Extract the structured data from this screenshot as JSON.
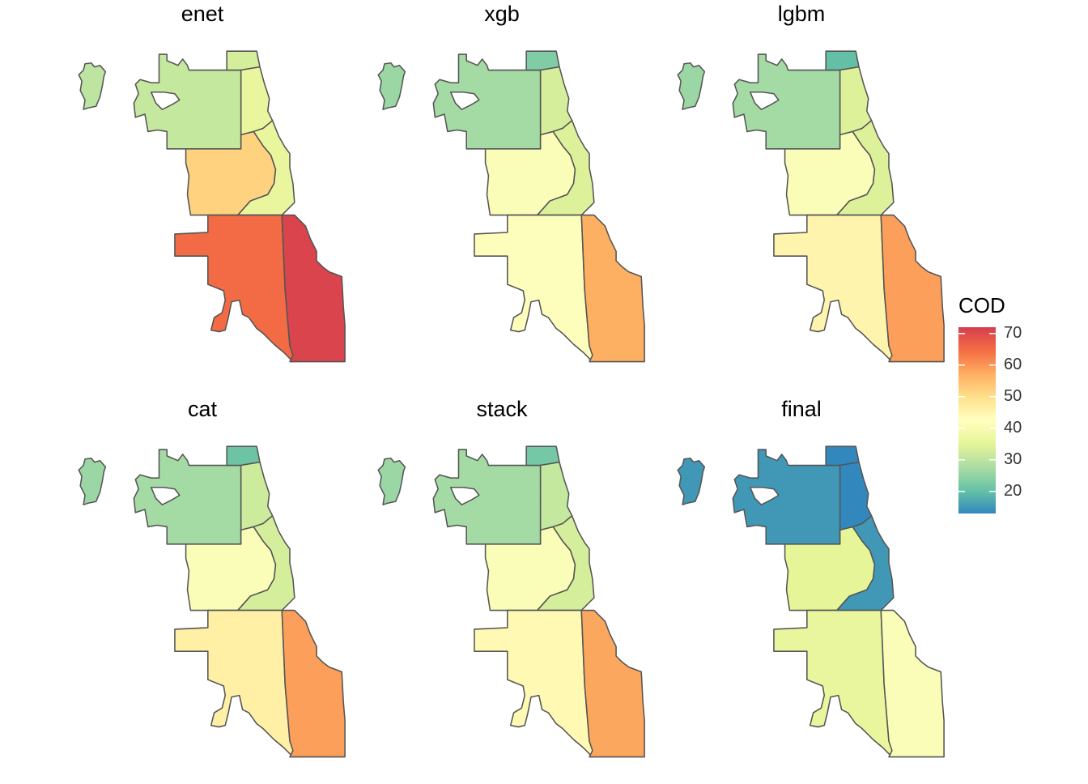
{
  "legend": {
    "title": "COD",
    "breaks": [
      70,
      60,
      50,
      40,
      30,
      20
    ],
    "min": 13,
    "max": 72,
    "palette": [
      "#3288BD",
      "#66C2A5",
      "#ABDDA4",
      "#E6F598",
      "#FFFFBF",
      "#FEE08B",
      "#FDAE61",
      "#F46D43",
      "#D53E4F"
    ]
  },
  "panels": [
    {
      "title": "enet",
      "values": {
        "ohare": 30,
        "northwest": 31,
        "northshore": 33,
        "north": 36,
        "west": 52,
        "lakefront": 36,
        "southwest": 65,
        "south": 71
      }
    },
    {
      "title": "xgb",
      "values": {
        "ohare": 26,
        "northwest": 27,
        "northshore": 23,
        "north": 33,
        "west": 41,
        "lakefront": 34,
        "southwest": 42,
        "south": 57
      }
    },
    {
      "title": "lgbm",
      "values": {
        "ohare": 26,
        "northwest": 27,
        "northshore": 20,
        "north": 34,
        "west": 41,
        "lakefront": 34,
        "southwest": 45,
        "south": 59
      }
    },
    {
      "title": "cat",
      "values": {
        "ohare": 26,
        "northwest": 27,
        "northshore": 21,
        "north": 32,
        "west": 41,
        "lakefront": 33,
        "southwest": 46,
        "south": 59
      }
    },
    {
      "title": "stack",
      "values": {
        "ohare": 26,
        "northwest": 27,
        "northshore": 22,
        "north": 31,
        "west": 41,
        "lakefront": 33,
        "southwest": 44,
        "south": 58
      }
    },
    {
      "title": "final",
      "values": {
        "ohare": 15,
        "northwest": 15,
        "northshore": 12,
        "north": 13,
        "west": 35,
        "lakefront": 15,
        "southwest": 36,
        "south": 41
      }
    }
  ]
}
